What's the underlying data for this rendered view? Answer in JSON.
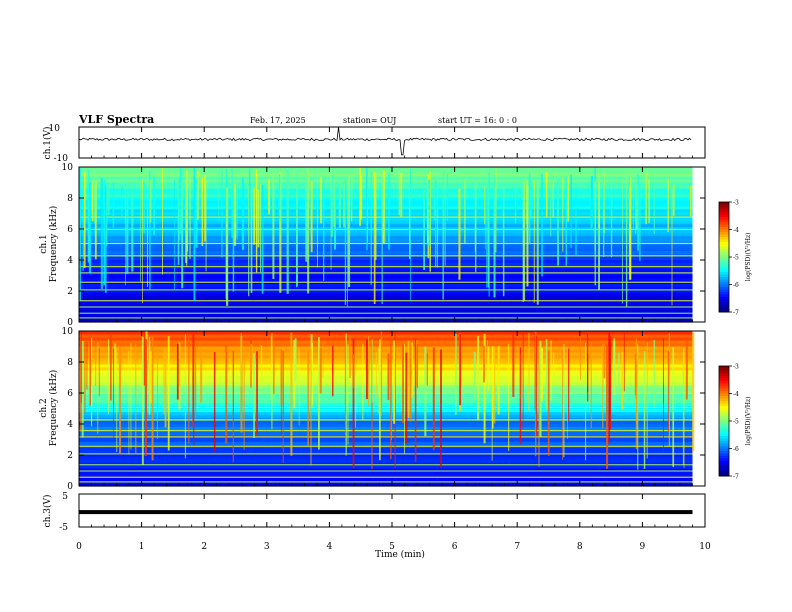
{
  "header": {
    "title": "VLF Spectra",
    "date": "Feb. 17, 2025",
    "station": "station= OUJ",
    "start": "start  UT =   16: 0  : 0"
  },
  "chart_data": [
    {
      "type": "line",
      "name": "ch1-waveform",
      "ylabel": "ch.1(V)",
      "ylim": [
        -10,
        10
      ],
      "yticks": [
        "10",
        "-10"
      ],
      "baseline": 2
    },
    {
      "type": "heatmap",
      "name": "ch1-spectrogram",
      "ylabel_top": "ch.1",
      "ylabel": "Frequency (kHz)",
      "ylim": [
        0,
        10
      ],
      "yticks": [
        "0",
        "2",
        "4",
        "6",
        "8",
        "10"
      ],
      "colorbar": {
        "label": "log(PSD)(V²/Hz)",
        "range": [
          -7,
          -3
        ],
        "ticks": [
          "-3",
          "-4",
          "-5",
          "-6",
          "-7"
        ]
      }
    },
    {
      "type": "heatmap",
      "name": "ch2-spectrogram",
      "ylabel_top": "ch.2",
      "ylabel": "Frequency (kHz)",
      "ylim": [
        0,
        10
      ],
      "yticks": [
        "0",
        "2",
        "4",
        "6",
        "8",
        "10"
      ],
      "colorbar": {
        "label": "log(PSD)(V²/Hz)",
        "range": [
          -7,
          -3
        ],
        "ticks": [
          "-3",
          "-4",
          "-5",
          "-6",
          "-7"
        ]
      }
    },
    {
      "type": "line",
      "name": "ch3-waveform",
      "ylabel": "ch.3(V)",
      "ylim": [
        -5,
        5
      ],
      "yticks": [
        "5",
        "0",
        "-5"
      ],
      "baseline": -0.5
    }
  ],
  "xaxis": {
    "label": "Time (min)",
    "xlim": [
      0,
      10
    ],
    "data_end": 9.8,
    "ticks": [
      "0",
      "1",
      "2",
      "3",
      "4",
      "5",
      "6",
      "7",
      "8",
      "9",
      "10"
    ]
  }
}
